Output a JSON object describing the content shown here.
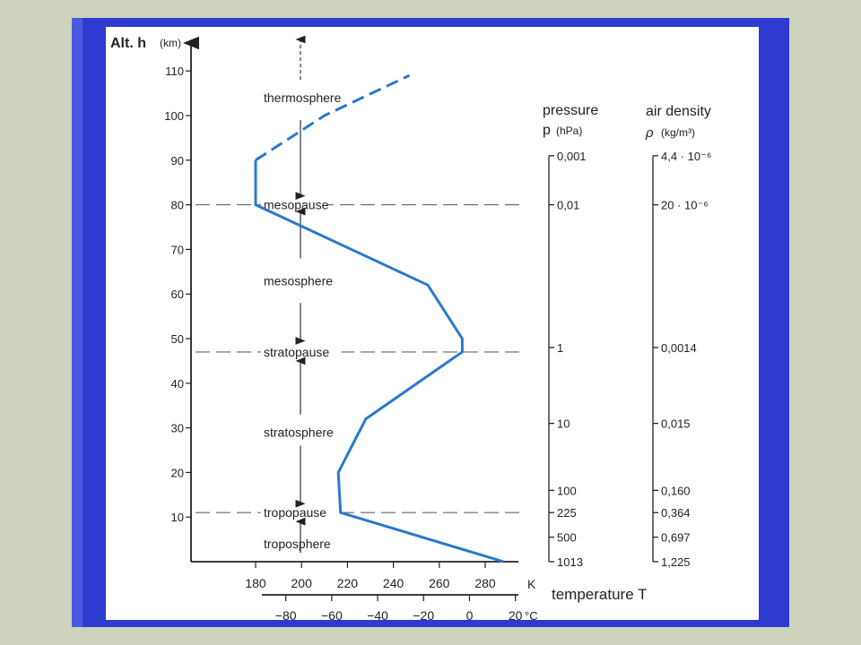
{
  "chart_data": {
    "type": "line",
    "y_axis": {
      "title": "Alt. h",
      "unit": "(km)",
      "ylim": [
        0,
        115
      ],
      "ticks": [
        10,
        20,
        30,
        40,
        50,
        60,
        70,
        80,
        90,
        100,
        110
      ]
    },
    "x_axis_kelvin": {
      "unit": "K",
      "xlim": [
        160,
        290
      ],
      "ticks": [
        180,
        200,
        220,
        240,
        260,
        280
      ]
    },
    "x_axis_celsius": {
      "unit": "°C",
      "ticks": [
        "−80",
        "−60",
        "−40",
        "−20",
        "0",
        "20"
      ]
    },
    "xlabel": "temperature T",
    "series": [
      {
        "style": "solid",
        "color": "#2a78cc",
        "points": [
          [
            288,
            0
          ],
          [
            217,
            11
          ],
          [
            216,
            20
          ],
          [
            228,
            32
          ],
          [
            270,
            47
          ],
          [
            270,
            50
          ],
          [
            255,
            62
          ],
          [
            180,
            80
          ],
          [
            180,
            90
          ]
        ]
      },
      {
        "style": "dashed",
        "color": "#2a78cc",
        "points": [
          [
            180,
            90
          ],
          [
            210,
            100
          ],
          [
            247,
            109
          ]
        ]
      }
    ],
    "boundaries": [
      {
        "label": "tropopause",
        "altitude": 11
      },
      {
        "label": "stratopause",
        "altitude": 47
      },
      {
        "label": "mesopause",
        "altitude": 80
      }
    ],
    "layers": [
      {
        "label": "troposphere",
        "altitude": 4
      },
      {
        "label": "stratosphere",
        "altitude": 29
      },
      {
        "label": "mesosphere",
        "altitude": 63
      },
      {
        "label": "thermosphere",
        "altitude": 104
      }
    ],
    "pressure_scale": {
      "title": "pressure",
      "symbol": "p",
      "unit": "(hPa)",
      "ticks": [
        {
          "altitude": 91,
          "label": "0,001"
        },
        {
          "altitude": 80,
          "label": "0,01"
        },
        {
          "altitude": 48,
          "label": "1"
        },
        {
          "altitude": 31,
          "label": "10"
        },
        {
          "altitude": 16,
          "label": "100"
        },
        {
          "altitude": 11,
          "label": "225"
        },
        {
          "altitude": 5.5,
          "label": "500"
        },
        {
          "altitude": 0,
          "label": "1013"
        }
      ]
    },
    "density_scale": {
      "title": "air density",
      "symbol": "ρ",
      "unit": "(kg/m³)",
      "ticks": [
        {
          "altitude": 91,
          "label": "4,4 · 10⁻⁶"
        },
        {
          "altitude": 80,
          "label": "20 · 10⁻⁶"
        },
        {
          "altitude": 48,
          "label": "0,0014"
        },
        {
          "altitude": 31,
          "label": "0,015"
        },
        {
          "altitude": 16,
          "label": "0,160"
        },
        {
          "altitude": 11,
          "label": "0,364"
        },
        {
          "altitude": 5.5,
          "label": "0,697"
        },
        {
          "altitude": 0,
          "label": "1,225"
        }
      ]
    }
  }
}
